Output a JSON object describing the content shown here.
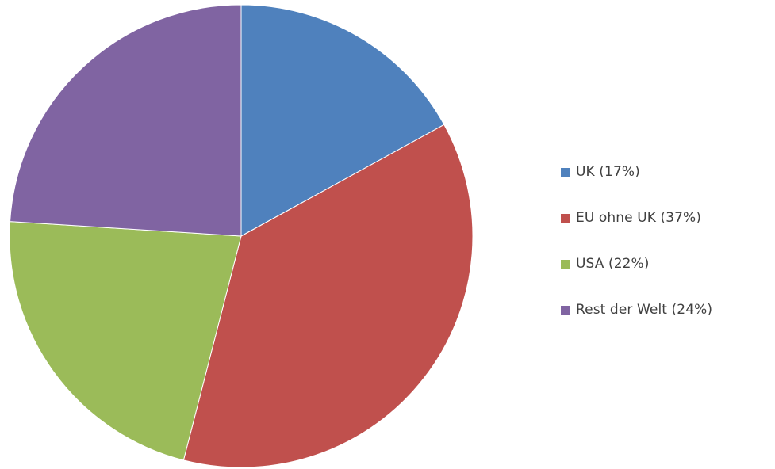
{
  "chart_data": {
    "type": "pie",
    "title": "",
    "start_angle_deg": 0,
    "direction": "clockwise",
    "slices": [
      {
        "label": "UK (17%)",
        "value": 17,
        "color": "#4F81BD"
      },
      {
        "label": "EU ohne UK (37%)",
        "value": 37,
        "color": "#C0504D"
      },
      {
        "label": "USA (22%)",
        "value": 22,
        "color": "#9BBB59"
      },
      {
        "label": "Rest der Welt (24%)",
        "value": 24,
        "color": "#8064A2"
      }
    ],
    "legend_position": "right"
  }
}
